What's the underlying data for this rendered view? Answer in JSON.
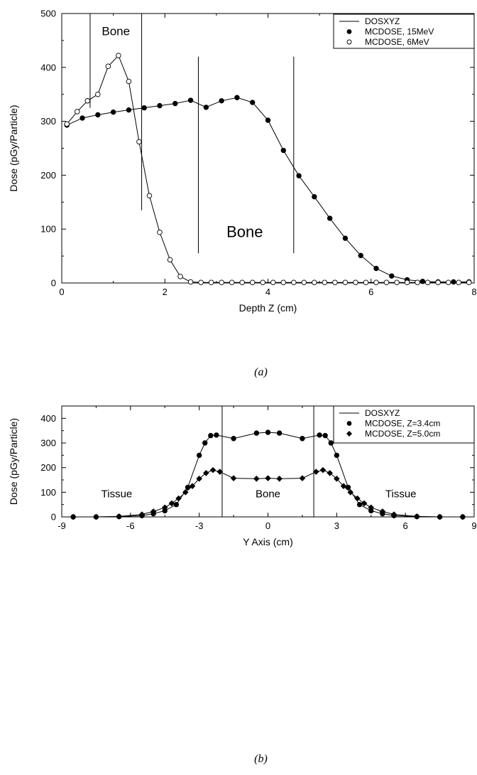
{
  "chart_data": [
    {
      "id": "a",
      "type": "line",
      "caption": "(a)",
      "xlabel": "Depth Z (cm)",
      "ylabel": "Dose (pGy/Particle)",
      "xlim": [
        0,
        8
      ],
      "ylim": [
        0,
        500
      ],
      "xticks": [
        0,
        2,
        4,
        6,
        8
      ],
      "yticks": [
        0,
        100,
        200,
        300,
        400,
        500
      ],
      "legend_position": "top-right",
      "legend": [
        {
          "label": "DOSXYZ",
          "marker": "line"
        },
        {
          "label": "MCDOSE, 15MeV",
          "marker": "filled-circle"
        },
        {
          "label": "MCDOSE, 6MeV",
          "marker": "open-circle"
        }
      ],
      "series": [
        {
          "name": "MCDOSE, 15MeV",
          "marker": "filled-circle",
          "x": [
            0.1,
            0.4,
            0.7,
            1.0,
            1.3,
            1.6,
            1.9,
            2.2,
            2.5,
            2.8,
            3.1,
            3.4,
            3.7,
            4.0,
            4.3,
            4.6,
            4.9,
            5.2,
            5.5,
            5.8,
            6.1,
            6.4,
            6.7,
            7.0,
            7.3,
            7.6,
            7.9
          ],
          "y": [
            293,
            306,
            312,
            317,
            321,
            325,
            329,
            333,
            339,
            326,
            338,
            344,
            335,
            302,
            246,
            199,
            160,
            120,
            83,
            51,
            27,
            13,
            6,
            3,
            2,
            2,
            2
          ]
        },
        {
          "name": "MCDOSE, 6MeV",
          "marker": "open-circle",
          "x": [
            0.1,
            0.3,
            0.5,
            0.7,
            0.9,
            1.1,
            1.3,
            1.5,
            1.7,
            1.9,
            2.1,
            2.3,
            2.5,
            2.7,
            2.9,
            3.1,
            3.3,
            3.5,
            3.7,
            3.9,
            4.1,
            4.3,
            4.5,
            4.7,
            4.9,
            5.1,
            5.3,
            5.5,
            5.7,
            5.9,
            6.1,
            6.3,
            6.5,
            6.7,
            6.9,
            7.1,
            7.3,
            7.5,
            7.7,
            7.9
          ],
          "y": [
            295,
            318,
            338,
            350,
            402,
            422,
            374,
            262,
            162,
            94,
            43,
            12,
            2,
            1,
            1,
            1,
            1,
            1,
            1,
            1,
            1,
            1,
            1,
            1,
            1,
            1,
            1,
            1,
            1,
            1,
            1,
            1,
            1,
            1,
            1,
            1,
            1,
            1,
            1,
            1
          ]
        }
      ],
      "boundaries": [
        {
          "x": 0.55,
          "y": [
            325,
            500
          ]
        },
        {
          "x": 1.55,
          "y": [
            135,
            500
          ]
        },
        {
          "x": 2.65,
          "y": [
            55,
            420
          ]
        },
        {
          "x": 4.5,
          "y": [
            55,
            420
          ]
        }
      ],
      "annotations": [
        {
          "text": "Bone",
          "x": 1.05,
          "y": 460,
          "size": "normal"
        },
        {
          "text": "Bone",
          "x": 3.55,
          "y": 85,
          "size": "large"
        }
      ]
    },
    {
      "id": "b",
      "type": "line",
      "caption": "(b)",
      "xlabel": "Y Axis (cm)",
      "ylabel": "Dose (pGy/Particle)",
      "xlim": [
        -9,
        9
      ],
      "ylim": [
        0,
        450
      ],
      "xticks": [
        -9,
        -6,
        -3,
        0,
        3,
        6,
        9
      ],
      "yticks": [
        0,
        100,
        200,
        300,
        400
      ],
      "legend_position": "top-right",
      "legend": [
        {
          "label": "DOSXYZ",
          "marker": "line"
        },
        {
          "label": "MCDOSE, Z=3.4cm",
          "marker": "filled-circle"
        },
        {
          "label": "MCDOSE, Z=5.0cm",
          "marker": "filled-diamond"
        }
      ],
      "series": [
        {
          "name": "MCDOSE, Z=3.4cm",
          "marker": "filled-circle",
          "x": [
            -8.5,
            -7.5,
            -6.5,
            -5.5,
            -5.0,
            -4.5,
            -4.0,
            -3.5,
            -3.0,
            -2.75,
            -2.5,
            -2.25,
            -1.5,
            -0.5,
            0,
            0.5,
            1.5,
            2.25,
            2.5,
            2.75,
            3.0,
            3.5,
            4.0,
            4.5,
            5.0,
            5.5,
            6.5,
            7.5,
            8.5
          ],
          "y": [
            0,
            0,
            1,
            5,
            13,
            25,
            50,
            120,
            250,
            300,
            330,
            332,
            318,
            340,
            343,
            340,
            318,
            332,
            330,
            300,
            250,
            120,
            50,
            25,
            13,
            5,
            1,
            0,
            0
          ]
        },
        {
          "name": "MCDOSE, Z=5.0cm",
          "marker": "filled-diamond",
          "x": [
            -8.5,
            -7.5,
            -6.5,
            -5.5,
            -5.0,
            -4.5,
            -4.2,
            -3.9,
            -3.6,
            -3.3,
            -3.0,
            -2.7,
            -2.4,
            -2.1,
            -1.5,
            -0.5,
            0,
            0.5,
            1.5,
            2.1,
            2.4,
            2.7,
            3.0,
            3.3,
            3.6,
            3.9,
            4.2,
            4.5,
            5.0,
            5.5,
            6.5,
            7.5,
            8.5
          ],
          "y": [
            0,
            0,
            2,
            10,
            22,
            38,
            55,
            75,
            100,
            125,
            155,
            178,
            190,
            183,
            157,
            155,
            157,
            155,
            157,
            183,
            190,
            178,
            155,
            125,
            100,
            75,
            55,
            38,
            22,
            10,
            2,
            0,
            0
          ]
        }
      ],
      "boundaries": [
        {
          "x": -2,
          "y": [
            0,
            450
          ]
        },
        {
          "x": 2,
          "y": [
            0,
            450
          ]
        }
      ],
      "annotations": [
        {
          "text": "Tissue",
          "x": -6.6,
          "y": 80,
          "size": "small"
        },
        {
          "text": "Bone",
          "x": 0,
          "y": 80,
          "size": "small"
        },
        {
          "text": "Tissue",
          "x": 5.8,
          "y": 80,
          "size": "small"
        }
      ]
    }
  ]
}
